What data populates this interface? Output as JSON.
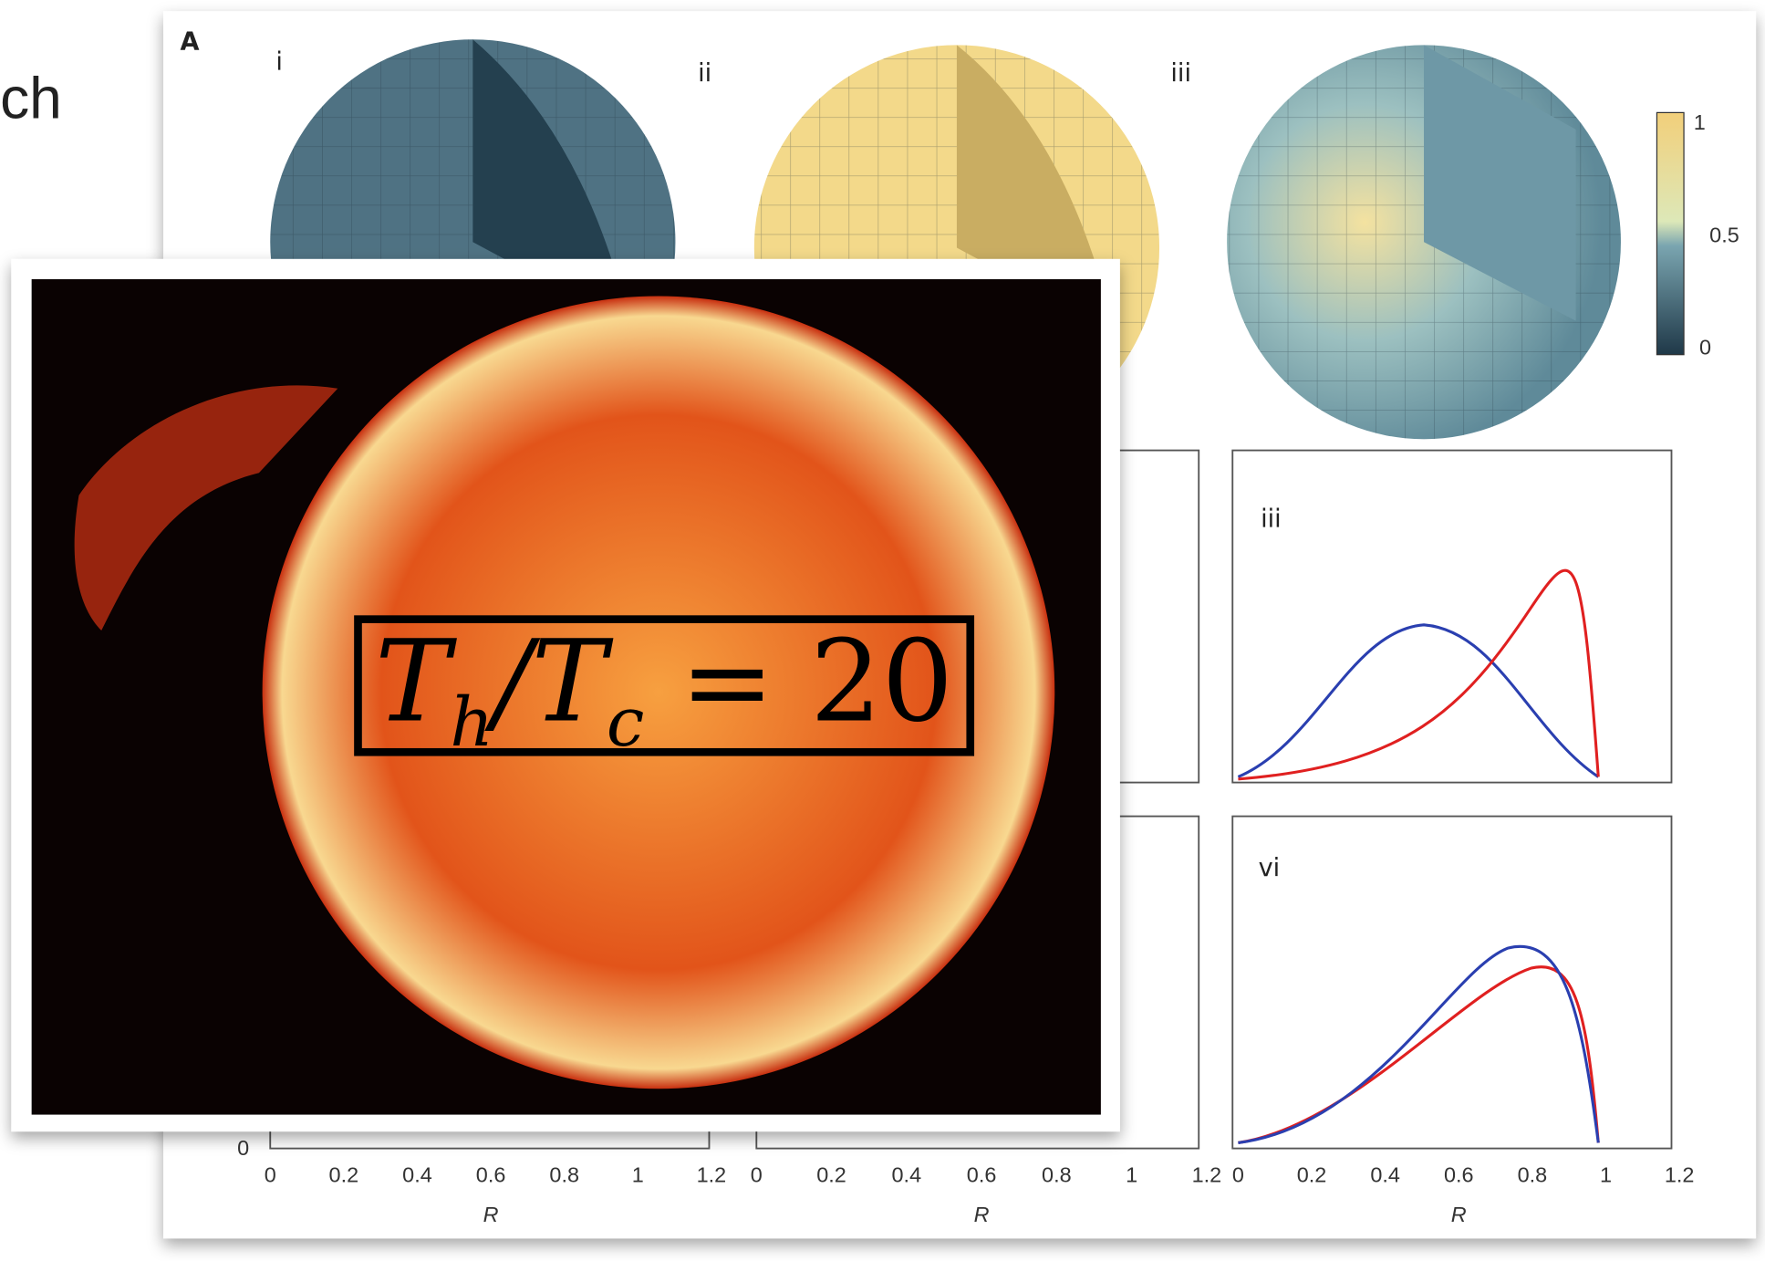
{
  "slide": {
    "left_text": "ch"
  },
  "figure": {
    "panel_label": "A",
    "sphere_labels": [
      "i",
      "ii",
      "iii"
    ],
    "colorbar_ticks": [
      "1",
      "0.5",
      "0"
    ],
    "plot_labels": [
      "iii",
      "vi"
    ],
    "y_tick": "0",
    "x_ticks": [
      "0",
      "0.2",
      "0.4",
      "0.6",
      "0.8",
      "1",
      "1.2"
    ],
    "x_axis_label": "R"
  },
  "overlay": {
    "equation": [
      "T",
      "h",
      "/T",
      "c",
      " = 20"
    ]
  }
}
